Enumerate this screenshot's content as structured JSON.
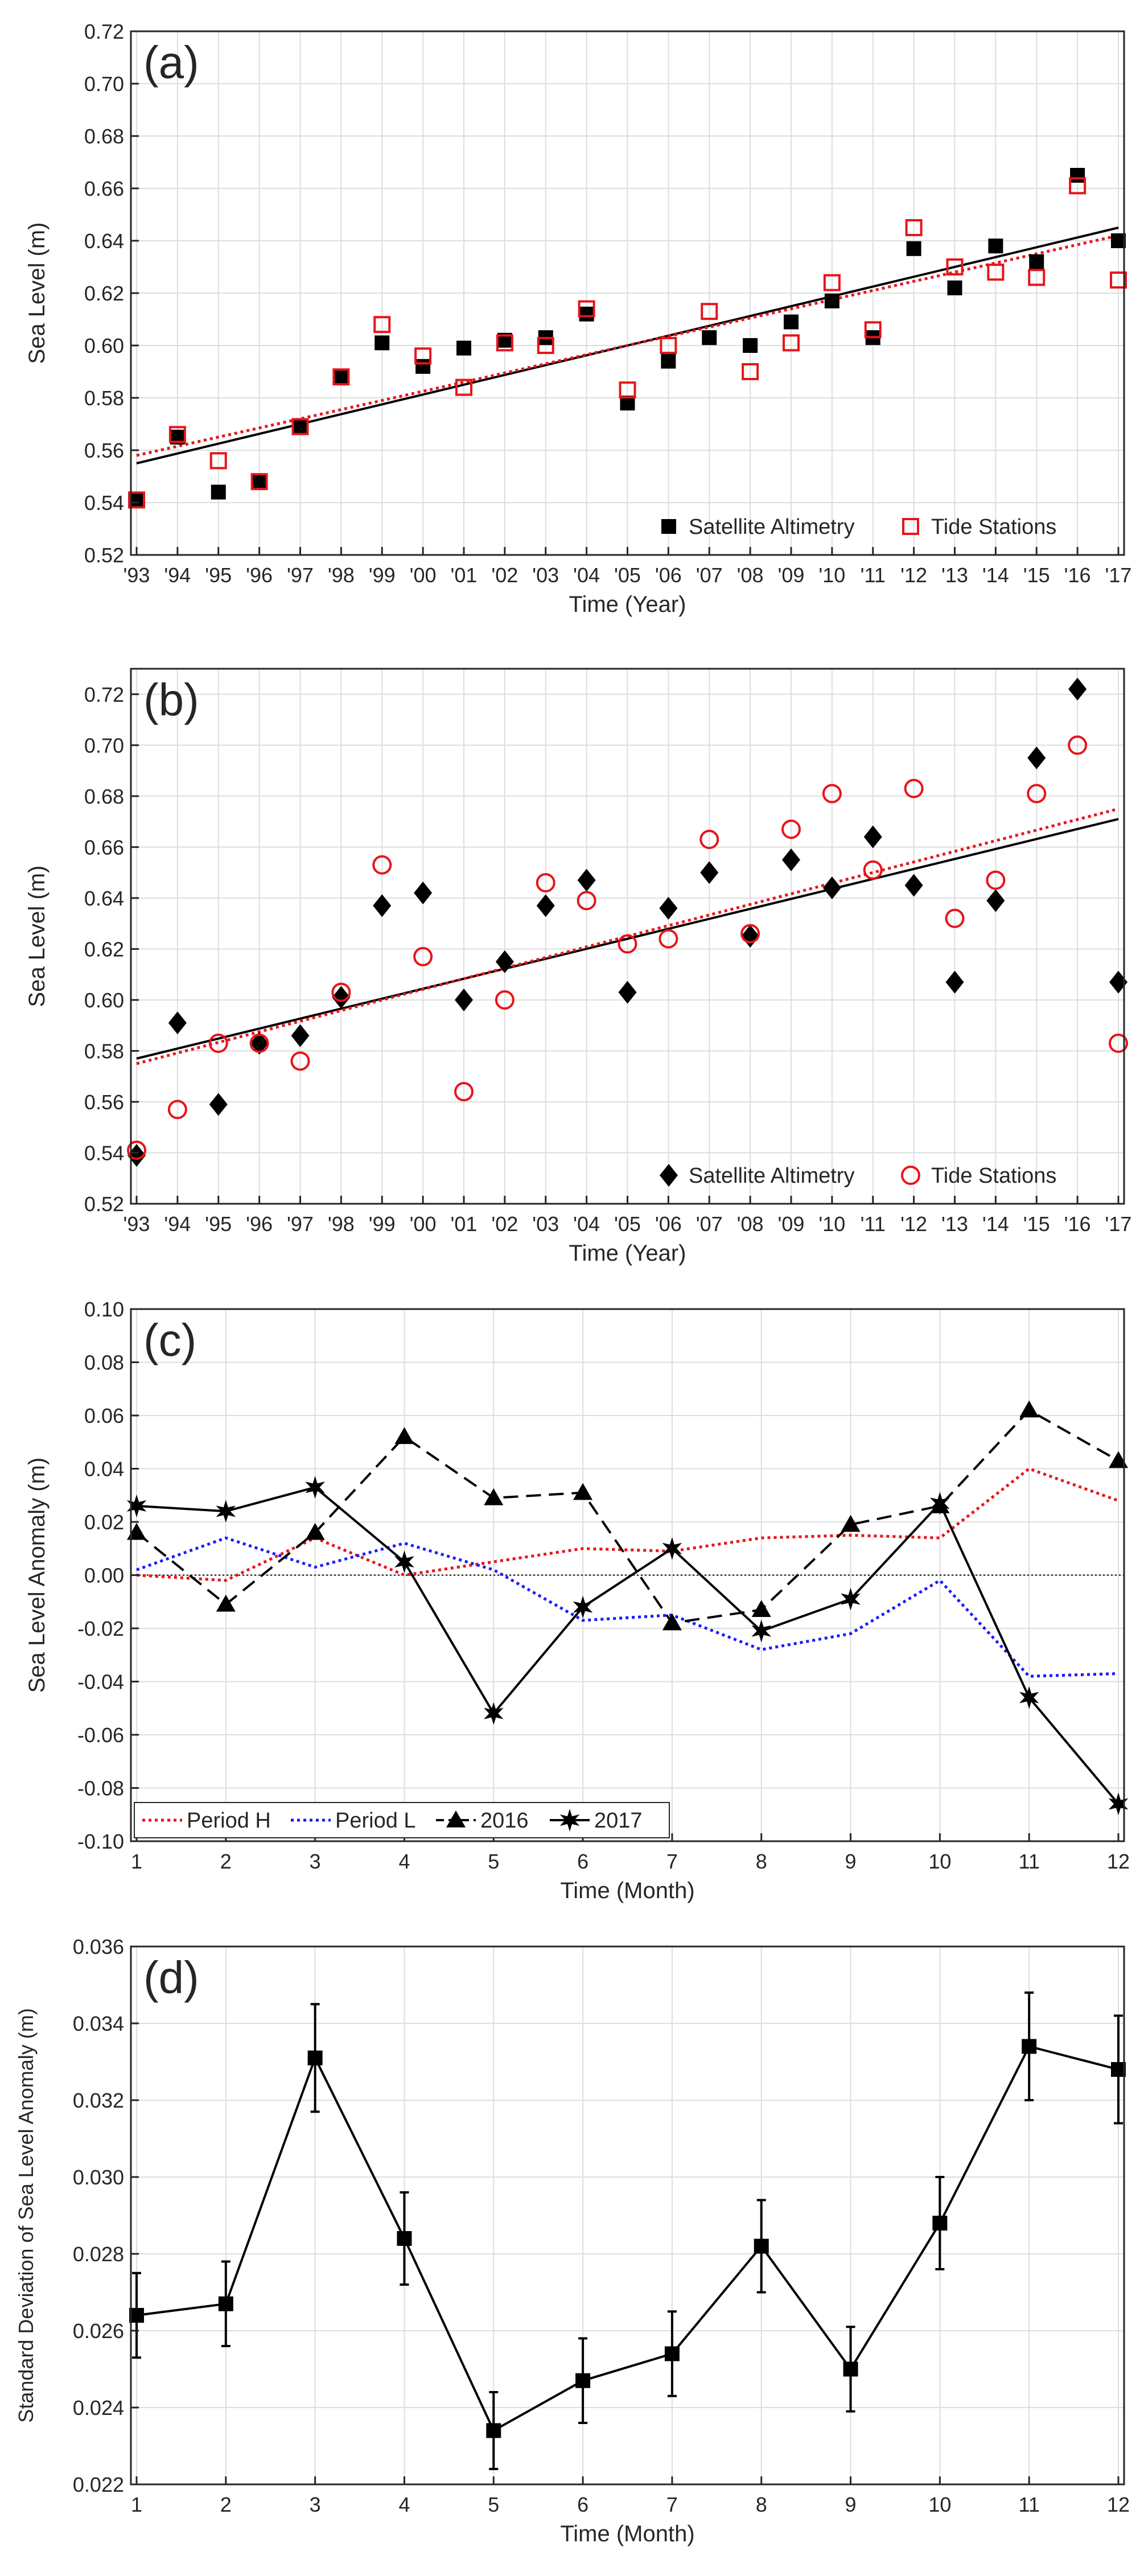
{
  "colors": {
    "black": "#000000",
    "red": "#e8141a",
    "blue": "#1a1aff",
    "grid": "#dddddd",
    "axis": "#262626"
  },
  "chart_data": [
    {
      "id": "a",
      "panel_label": "(a)",
      "type": "scatter",
      "xlabel": "Time (Year)",
      "ylabel": "Sea Level (m)",
      "xlim": [
        1993,
        2017
      ],
      "ylim": [
        0.52,
        0.72
      ],
      "yticks": [
        0.52,
        0.54,
        0.56,
        0.58,
        0.6,
        0.62,
        0.64,
        0.66,
        0.68,
        0.7,
        0.72
      ],
      "ytick_labels": [
        "0.52",
        "0.54",
        "0.56",
        "0.58",
        "0.60",
        "0.62",
        "0.64",
        "0.66",
        "0.68",
        "0.70",
        "0.72"
      ],
      "xticks": [
        1993,
        1994,
        1995,
        1996,
        1997,
        1998,
        1999,
        2000,
        2001,
        2002,
        2003,
        2004,
        2005,
        2006,
        2007,
        2008,
        2009,
        2010,
        2011,
        2012,
        2013,
        2014,
        2015,
        2016,
        2017
      ],
      "xtick_labels": [
        "'93",
        "'94",
        "'95",
        "'96",
        "'97",
        "'98",
        "'99",
        "'00",
        "'01",
        "'02",
        "'03",
        "'04",
        "'05",
        "'06",
        "'07",
        "'08",
        "'09",
        "'10",
        "'11",
        "'12",
        "'13",
        "'14",
        "'15",
        "'16",
        "'17"
      ],
      "legend_position": "bottom-right",
      "series": [
        {
          "name": "Satellite Altimetry",
          "marker": "square-filled",
          "color": "#000000",
          "x": [
            1993,
            1994,
            1995,
            1996,
            1997,
            1998,
            1999,
            2000,
            2001,
            2002,
            2003,
            2004,
            2005,
            2006,
            2007,
            2008,
            2009,
            2010,
            2011,
            2012,
            2013,
            2014,
            2015,
            2016,
            2017
          ],
          "values": [
            0.541,
            0.565,
            0.544,
            0.548,
            0.569,
            0.588,
            0.601,
            0.592,
            0.599,
            0.602,
            0.603,
            0.612,
            0.578,
            0.594,
            0.603,
            0.6,
            0.609,
            0.617,
            0.603,
            0.637,
            0.622,
            0.638,
            0.632,
            0.665,
            0.64
          ],
          "trend": [
            0.555,
            0.645
          ],
          "trend_style": "solid"
        },
        {
          "name": "Tide Stations",
          "marker": "square-open",
          "color": "#e8141a",
          "x": [
            1993,
            1994,
            1995,
            1996,
            1997,
            1998,
            1999,
            2000,
            2001,
            2002,
            2003,
            2004,
            2005,
            2006,
            2007,
            2008,
            2009,
            2010,
            2011,
            2012,
            2013,
            2014,
            2015,
            2016,
            2017
          ],
          "values": [
            0.541,
            0.566,
            0.556,
            0.548,
            0.569,
            0.588,
            0.608,
            0.596,
            0.584,
            0.601,
            0.6,
            0.614,
            0.583,
            0.6,
            0.613,
            0.59,
            0.601,
            0.624,
            0.606,
            0.645,
            0.63,
            0.628,
            0.626,
            0.661,
            0.625
          ],
          "trend": [
            0.558,
            0.642
          ],
          "trend_style": "dotted"
        }
      ]
    },
    {
      "id": "b",
      "panel_label": "(b)",
      "type": "scatter",
      "xlabel": "Time (Year)",
      "ylabel": "Sea Level (m)",
      "xlim": [
        1993,
        2017
      ],
      "ylim": [
        0.52,
        0.73
      ],
      "yticks": [
        0.52,
        0.54,
        0.56,
        0.58,
        0.6,
        0.62,
        0.64,
        0.66,
        0.68,
        0.7,
        0.72
      ],
      "ytick_labels": [
        "0.52",
        "0.54",
        "0.56",
        "0.58",
        "0.60",
        "0.62",
        "0.64",
        "0.66",
        "0.68",
        "0.70",
        "0.72"
      ],
      "xticks": [
        1993,
        1994,
        1995,
        1996,
        1997,
        1998,
        1999,
        2000,
        2001,
        2002,
        2003,
        2004,
        2005,
        2006,
        2007,
        2008,
        2009,
        2010,
        2011,
        2012,
        2013,
        2014,
        2015,
        2016,
        2017
      ],
      "xtick_labels": [
        "'93",
        "'94",
        "'95",
        "'96",
        "'97",
        "'98",
        "'99",
        "'00",
        "'01",
        "'02",
        "'03",
        "'04",
        "'05",
        "'06",
        "'07",
        "'08",
        "'09",
        "'10",
        "'11",
        "'12",
        "'13",
        "'14",
        "'15",
        "'16",
        "'17"
      ],
      "legend_position": "bottom-right",
      "series": [
        {
          "name": "Satellite Altimetry",
          "marker": "diamond-filled",
          "color": "#000000",
          "x": [
            1993,
            1994,
            1995,
            1996,
            1997,
            1998,
            1999,
            2000,
            2001,
            2002,
            2003,
            2004,
            2005,
            2006,
            2007,
            2008,
            2009,
            2010,
            2011,
            2012,
            2013,
            2014,
            2015,
            2016,
            2017
          ],
          "values": [
            0.539,
            0.591,
            0.559,
            0.583,
            0.586,
            0.601,
            0.637,
            0.642,
            0.6,
            0.615,
            0.637,
            0.647,
            0.603,
            0.636,
            0.65,
            0.625,
            0.655,
            0.644,
            0.664,
            0.645,
            0.607,
            0.639,
            0.695,
            0.722,
            0.607
          ],
          "trend": [
            0.577,
            0.671
          ],
          "trend_style": "solid"
        },
        {
          "name": "Tide Stations",
          "marker": "circle-open",
          "color": "#e8141a",
          "x": [
            1993,
            1994,
            1995,
            1996,
            1997,
            1998,
            1999,
            2000,
            2001,
            2002,
            2003,
            2004,
            2005,
            2006,
            2007,
            2008,
            2009,
            2010,
            2011,
            2012,
            2013,
            2014,
            2015,
            2016,
            2017
          ],
          "values": [
            0.541,
            0.557,
            0.583,
            0.583,
            0.576,
            0.603,
            0.653,
            0.617,
            0.564,
            0.6,
            0.646,
            0.639,
            0.622,
            0.624,
            0.663,
            0.626,
            0.667,
            0.681,
            0.651,
            0.683,
            0.632,
            0.647,
            0.681,
            0.7,
            0.583
          ],
          "trend": [
            0.575,
            0.675
          ],
          "trend_style": "dotted"
        }
      ]
    },
    {
      "id": "c",
      "panel_label": "(c)",
      "type": "line",
      "xlabel": "Time (Month)",
      "ylabel": "Sea Level Anomaly (m)",
      "xlim": [
        1,
        12
      ],
      "ylim": [
        -0.1,
        0.1
      ],
      "yticks": [
        -0.1,
        -0.08,
        -0.06,
        -0.04,
        -0.02,
        0.0,
        0.02,
        0.04,
        0.06,
        0.08,
        0.1
      ],
      "ytick_labels": [
        "-0.10",
        "-0.08",
        "-0.06",
        "-0.04",
        "-0.02",
        "0.00",
        "0.02",
        "0.04",
        "0.06",
        "0.08",
        "0.10"
      ],
      "xticks": [
        1,
        2,
        3,
        4,
        5,
        6,
        7,
        8,
        9,
        10,
        11,
        12
      ],
      "xtick_labels": [
        "1",
        "2",
        "3",
        "4",
        "5",
        "6",
        "7",
        "8",
        "9",
        "10",
        "11",
        "12"
      ],
      "zero_line": true,
      "legend_position": "bottom-left",
      "categories": [
        1,
        2,
        3,
        4,
        5,
        6,
        7,
        8,
        9,
        10,
        11,
        12
      ],
      "series": [
        {
          "name": "Period H",
          "color": "#e8141a",
          "line": "dotted",
          "marker": "none",
          "values": [
            0.0,
            -0.002,
            0.014,
            0.0,
            0.005,
            0.01,
            0.009,
            0.014,
            0.015,
            0.014,
            0.04,
            0.028
          ]
        },
        {
          "name": "Period L",
          "color": "#1a1aff",
          "line": "dotted",
          "marker": "none",
          "values": [
            0.002,
            0.014,
            0.003,
            0.012,
            0.002,
            -0.017,
            -0.015,
            -0.028,
            -0.022,
            -0.002,
            -0.038,
            -0.037
          ]
        },
        {
          "name": "2016",
          "color": "#000000",
          "line": "dashed",
          "marker": "triangle",
          "values": [
            0.016,
            -0.011,
            0.016,
            0.052,
            0.029,
            0.031,
            -0.018,
            -0.013,
            0.019,
            0.026,
            0.062,
            0.043
          ]
        },
        {
          "name": "2017",
          "color": "#000000",
          "line": "solid",
          "marker": "star",
          "values": [
            0.026,
            0.024,
            0.033,
            0.005,
            -0.052,
            -0.012,
            0.01,
            -0.021,
            -0.009,
            0.027,
            -0.046,
            -0.086
          ]
        }
      ]
    },
    {
      "id": "d",
      "panel_label": "(d)",
      "type": "line",
      "xlabel": "Time (Month)",
      "ylabel": "Standard Deviation of Sea Level Anomaly (m)",
      "xlim": [
        1,
        12
      ],
      "ylim": [
        0.022,
        0.036
      ],
      "yticks": [
        0.022,
        0.024,
        0.026,
        0.028,
        0.03,
        0.032,
        0.034,
        0.036
      ],
      "ytick_labels": [
        "0.022",
        "0.024",
        "0.026",
        "0.028",
        "0.030",
        "0.032",
        "0.034",
        "0.036"
      ],
      "xticks": [
        1,
        2,
        3,
        4,
        5,
        6,
        7,
        8,
        9,
        10,
        11,
        12
      ],
      "xtick_labels": [
        "1",
        "2",
        "3",
        "4",
        "5",
        "6",
        "7",
        "8",
        "9",
        "10",
        "11",
        "12"
      ],
      "categories": [
        1,
        2,
        3,
        4,
        5,
        6,
        7,
        8,
        9,
        10,
        11,
        12
      ],
      "series": [
        {
          "name": "Standard deviation",
          "color": "#000000",
          "line": "solid",
          "marker": "square-filled",
          "values": [
            0.0264,
            0.0267,
            0.0331,
            0.0284,
            0.0234,
            0.0247,
            0.0254,
            0.0282,
            0.025,
            0.0288,
            0.0334,
            0.0328
          ],
          "error": [
            0.0011,
            0.0011,
            0.0014,
            0.0012,
            0.001,
            0.0011,
            0.0011,
            0.0012,
            0.0011,
            0.0012,
            0.0014,
            0.0014
          ]
        }
      ]
    }
  ]
}
